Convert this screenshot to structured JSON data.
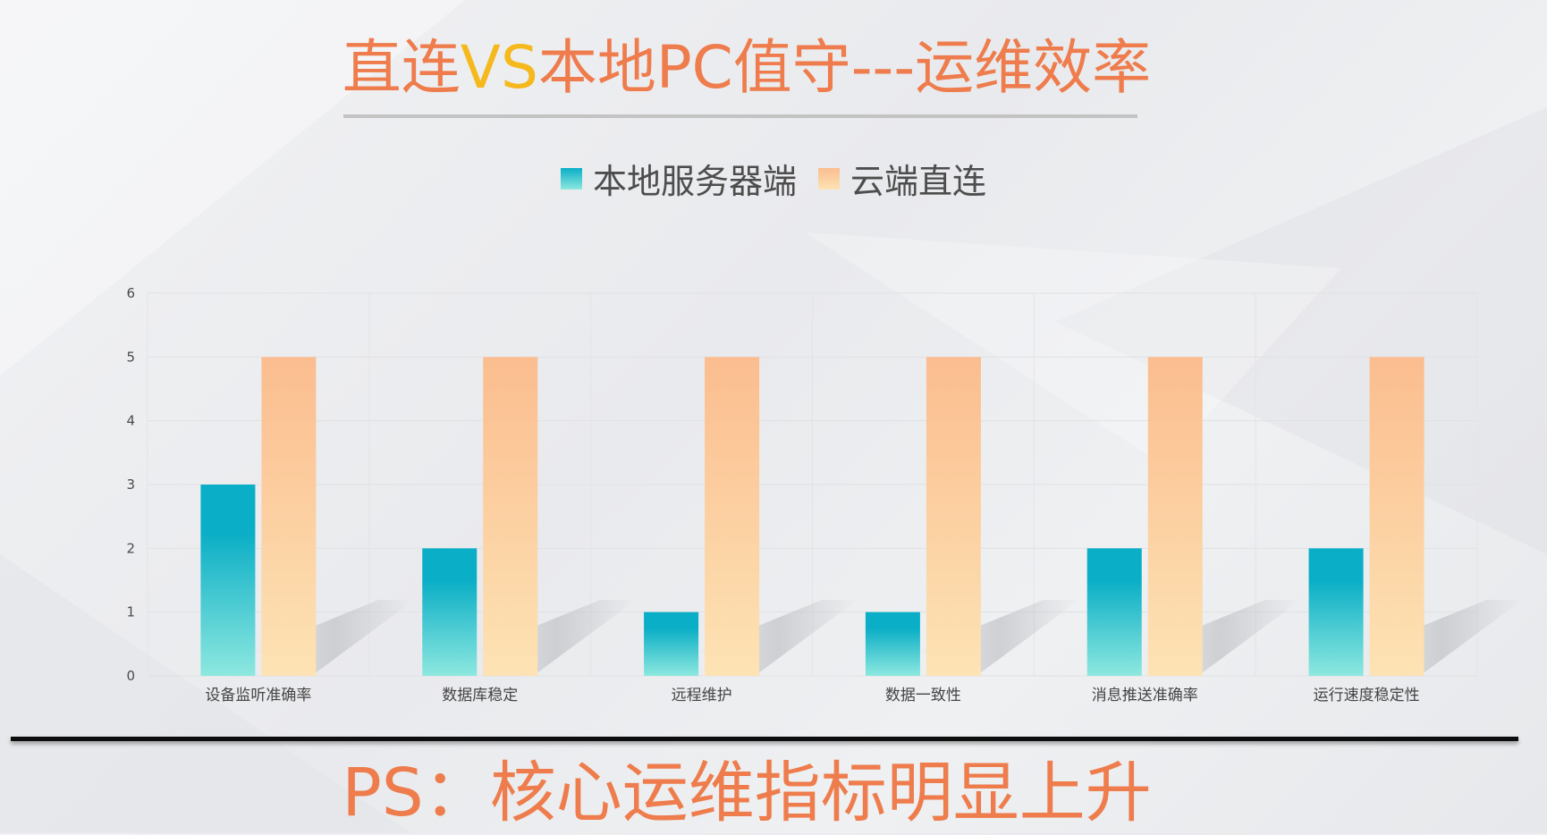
{
  "slide": {
    "title_part1": "直连",
    "title_vs": "VS",
    "title_part2": "本地PC值守---运维效率",
    "footer": "PS：核心运维指标明显上升"
  },
  "colors": {
    "title": "#ee7c4c",
    "vs": "#f5b91d",
    "series1_top": "#0aaec6",
    "series1_bottom": "#8de8df",
    "series2_top": "#fbbd8f",
    "series2_bottom": "#fde3b4"
  },
  "chart_data": {
    "type": "bar",
    "categories": [
      "设备监听准确率",
      "数据库稳定",
      "远程维护",
      "数据一致性",
      "消息推送准确率",
      "运行速度稳定性"
    ],
    "series": [
      {
        "name": "本地服务器端",
        "values": [
          3,
          2,
          1,
          1,
          2,
          2
        ]
      },
      {
        "name": "云端直连",
        "values": [
          5,
          5,
          5,
          5,
          5,
          5
        ]
      }
    ],
    "yticks": [
      0,
      1,
      2,
      3,
      4,
      5,
      6
    ],
    "ylim": [
      0,
      6
    ],
    "grid": true,
    "legend": "top-center"
  }
}
